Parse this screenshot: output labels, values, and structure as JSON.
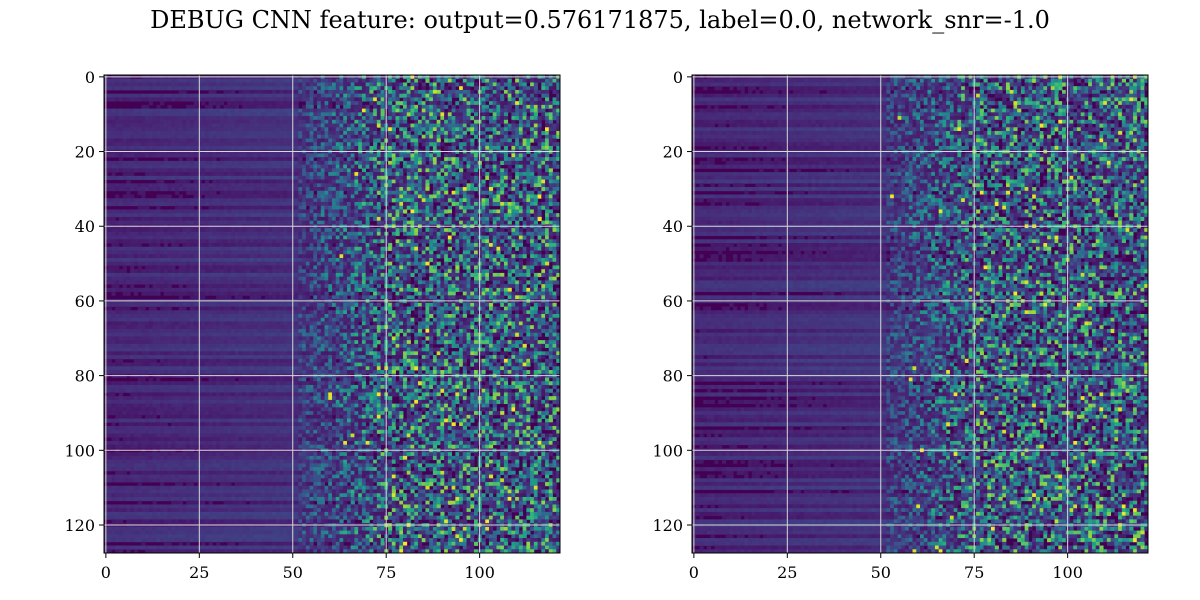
{
  "figure_title": "DEBUG CNN feature: output=0.576171875, label=0.0, network_snr=-1.0",
  "chart_data": [
    {
      "type": "heatmap",
      "title": "",
      "xlabel": "",
      "ylabel": "",
      "rows": 128,
      "cols": 122,
      "xlim": [
        -0.5,
        121.5
      ],
      "ylim": [
        127.5,
        -0.5
      ],
      "x_ticks": [
        0,
        25,
        50,
        75,
        100
      ],
      "y_ticks": [
        0,
        20,
        40,
        60,
        80,
        100,
        120
      ],
      "grid": true,
      "colormap": "viridis",
      "colors": {
        "low": "#440154",
        "mid": "#21918c",
        "high": "#fde725"
      },
      "pattern": "low and smooth row-banded values for columns 0-50, increasingly noisy higher values toward columns 75-121",
      "seed": 7
    },
    {
      "type": "heatmap",
      "title": "",
      "xlabel": "",
      "ylabel": "",
      "rows": 128,
      "cols": 122,
      "xlim": [
        -0.5,
        121.5
      ],
      "ylim": [
        127.5,
        -0.5
      ],
      "x_ticks": [
        0,
        25,
        50,
        75,
        100
      ],
      "y_ticks": [
        0,
        20,
        40,
        60,
        80,
        100,
        120
      ],
      "grid": true,
      "colormap": "viridis",
      "colors": {
        "low": "#440154",
        "mid": "#21918c",
        "high": "#fde725"
      },
      "pattern": "low and smooth row-banded values for columns 0-50, increasingly noisy higher values toward columns 75-121",
      "seed": 13
    }
  ]
}
